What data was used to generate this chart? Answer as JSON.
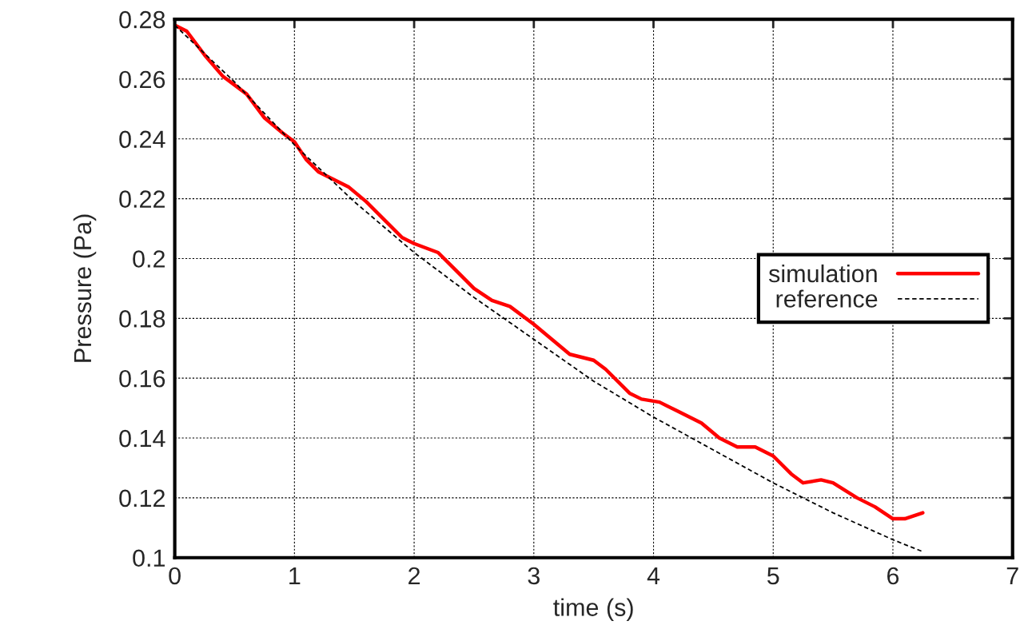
{
  "chart_data": {
    "type": "line",
    "xlabel": "time (s)",
    "ylabel": "Pressure (Pa)",
    "xlim": [
      0,
      7
    ],
    "xticks": [
      0,
      1,
      2,
      3,
      4,
      5,
      6,
      7
    ],
    "ylim": [
      0.1,
      0.28
    ],
    "yticks": [
      0.1,
      0.12,
      0.14,
      0.16,
      0.18,
      0.2,
      0.22,
      0.24,
      0.26,
      0.28
    ],
    "grid": true,
    "legend": "right",
    "series": [
      {
        "name": "simulation",
        "color": "#ff0000",
        "line_style": "solid",
        "x": [
          0,
          0.1,
          0.25,
          0.4,
          0.5,
          0.6,
          0.75,
          0.9,
          1.0,
          1.1,
          1.2,
          1.3,
          1.45,
          1.6,
          1.75,
          1.9,
          2.0,
          2.2,
          2.35,
          2.5,
          2.65,
          2.8,
          3.0,
          3.15,
          3.3,
          3.5,
          3.6,
          3.8,
          3.9,
          4.05,
          4.2,
          4.4,
          4.55,
          4.7,
          4.85,
          5.0,
          5.15,
          5.25,
          5.4,
          5.5,
          5.7,
          5.85,
          6.0,
          6.1,
          6.25
        ],
        "values": [
          0.278,
          0.276,
          0.268,
          0.261,
          0.258,
          0.255,
          0.247,
          0.242,
          0.239,
          0.233,
          0.229,
          0.227,
          0.224,
          0.219,
          0.213,
          0.207,
          0.205,
          0.202,
          0.196,
          0.19,
          0.186,
          0.184,
          0.178,
          0.173,
          0.168,
          0.166,
          0.163,
          0.155,
          0.153,
          0.152,
          0.149,
          0.145,
          0.14,
          0.137,
          0.137,
          0.134,
          0.128,
          0.125,
          0.126,
          0.125,
          0.12,
          0.117,
          0.113,
          0.113,
          0.115
        ]
      },
      {
        "name": "reference",
        "color": "#000000",
        "line_style": "dashed",
        "x": [
          0,
          0.5,
          1,
          1.5,
          2,
          2.5,
          3,
          3.5,
          4,
          4.5,
          5,
          5.5,
          6,
          6.25
        ],
        "values": [
          0.278,
          0.259,
          0.238,
          0.219,
          0.202,
          0.187,
          0.173,
          0.159,
          0.147,
          0.136,
          0.125,
          0.115,
          0.106,
          0.102
        ]
      }
    ]
  }
}
